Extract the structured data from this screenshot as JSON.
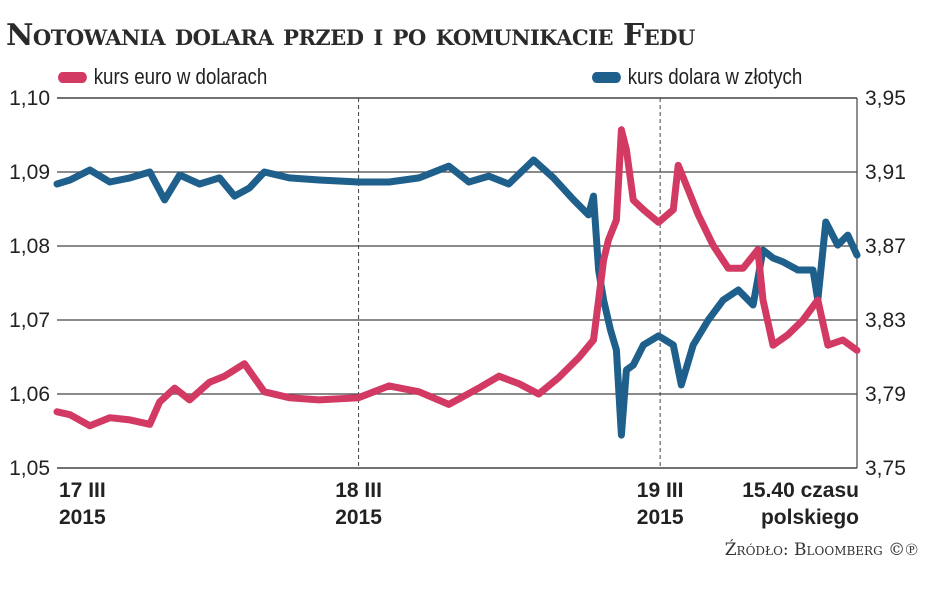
{
  "chart_data": {
    "type": "line",
    "title": "Notowania dolara przed i po komunikacie Fedu",
    "source": "Źródło: Bloomberg ©℗",
    "xlim": [
      "2015-03-17T00:00",
      "2015-03-19T15:40"
    ],
    "x_ticks": [
      {
        "x": "2015-03-17T00:00",
        "line1": "17 III",
        "line2": "2015"
      },
      {
        "x": "2015-03-18T00:00",
        "line1": "18 III",
        "line2": "2015"
      },
      {
        "x": "2015-03-19T00:00",
        "line1": "19 III",
        "line2": "2015"
      },
      {
        "x": "2015-03-19T15:40",
        "line1": "15.40 czasu",
        "line2": "polskiego"
      }
    ],
    "left_axis": {
      "ylim": [
        1.05,
        1.1
      ],
      "ticks": [
        "1,10",
        "1,09",
        "1,08",
        "1,07",
        "1,06",
        "1,05"
      ]
    },
    "right_axis": {
      "ylim": [
        3.75,
        3.95
      ],
      "ticks": [
        "3,95",
        "3,91",
        "3,87",
        "3,83",
        "3,79",
        "3,75"
      ]
    },
    "grid": true,
    "dashed_day_separators": true,
    "series": [
      {
        "name": "kurs euro w dolarach",
        "axis": "left",
        "color": "#d23a63",
        "points": [
          [
            "2015-03-17T00:00",
            1.0576
          ],
          [
            "2015-03-17T01:02",
            1.0572
          ],
          [
            "2015-03-17T02:37",
            1.0557
          ],
          [
            "2015-03-17T04:12",
            1.0568
          ],
          [
            "2015-03-17T05:48",
            1.0565
          ],
          [
            "2015-03-17T07:23",
            1.0559
          ],
          [
            "2015-03-17T08:10",
            1.0589
          ],
          [
            "2015-03-17T09:22",
            1.0608
          ],
          [
            "2015-03-17T10:33",
            1.0592
          ],
          [
            "2015-03-17T12:08",
            1.0616
          ],
          [
            "2015-03-17T13:20",
            1.0624
          ],
          [
            "2015-03-17T14:55",
            1.0641
          ],
          [
            "2015-03-17T16:30",
            1.0603
          ],
          [
            "2015-03-17T18:29",
            1.0595
          ],
          [
            "2015-03-17T20:52",
            1.0592
          ],
          [
            "2015-03-18T00:00",
            1.0595
          ],
          [
            "2015-03-18T02:26",
            1.0611
          ],
          [
            "2015-03-18T04:49",
            1.0603
          ],
          [
            "2015-03-18T07:11",
            1.0586
          ],
          [
            "2015-03-18T09:34",
            1.0608
          ],
          [
            "2015-03-18T11:10",
            1.0624
          ],
          [
            "2015-03-18T12:45",
            1.0614
          ],
          [
            "2015-03-18T14:20",
            1.06
          ],
          [
            "2015-03-18T15:55",
            1.0622
          ],
          [
            "2015-03-18T17:31",
            1.0649
          ],
          [
            "2015-03-18T18:42",
            1.0673
          ],
          [
            "2015-03-18T19:06",
            1.0727
          ],
          [
            "2015-03-18T19:30",
            1.0781
          ],
          [
            "2015-03-18T19:53",
            1.0808
          ],
          [
            "2015-03-18T20:31",
            1.0835
          ],
          [
            "2015-03-18T20:55",
            1.0957
          ],
          [
            "2015-03-18T21:19",
            1.093
          ],
          [
            "2015-03-18T21:52",
            1.0862
          ],
          [
            "2015-03-18T22:40",
            1.0849
          ],
          [
            "2015-03-18T23:52",
            1.0832
          ],
          [
            "2015-03-19T01:03",
            1.0849
          ],
          [
            "2015-03-19T01:26",
            1.0909
          ],
          [
            "2015-03-19T02:14",
            1.0876
          ],
          [
            "2015-03-19T03:02",
            1.0842
          ],
          [
            "2015-03-19T04:13",
            1.0801
          ],
          [
            "2015-03-19T05:25",
            1.077
          ],
          [
            "2015-03-19T06:36",
            1.077
          ],
          [
            "2015-03-19T07:47",
            1.0795
          ],
          [
            "2015-03-19T08:11",
            1.0727
          ],
          [
            "2015-03-19T08:59",
            1.0666
          ],
          [
            "2015-03-19T10:10",
            1.068
          ],
          [
            "2015-03-19T11:22",
            1.07
          ],
          [
            "2015-03-19T12:33",
            1.0727
          ],
          [
            "2015-03-19T13:21",
            1.0666
          ],
          [
            "2015-03-19T14:32",
            1.0673
          ],
          [
            "2015-03-19T15:40",
            1.0659
          ]
        ]
      },
      {
        "name": "kurs dolara w złotych",
        "axis": "right",
        "color": "#1e5f8c",
        "points": [
          [
            "2015-03-17T00:00",
            3.9035
          ],
          [
            "2015-03-17T01:02",
            3.9057
          ],
          [
            "2015-03-17T02:37",
            3.9111
          ],
          [
            "2015-03-17T04:12",
            3.9046
          ],
          [
            "2015-03-17T05:48",
            3.9068
          ],
          [
            "2015-03-17T07:23",
            3.91
          ],
          [
            "2015-03-17T08:34",
            3.8949
          ],
          [
            "2015-03-17T09:46",
            3.9084
          ],
          [
            "2015-03-17T11:21",
            3.9035
          ],
          [
            "2015-03-17T12:56",
            3.9068
          ],
          [
            "2015-03-17T14:08",
            3.897
          ],
          [
            "2015-03-17T15:19",
            3.9014
          ],
          [
            "2015-03-17T16:30",
            3.91
          ],
          [
            "2015-03-17T18:29",
            3.9068
          ],
          [
            "2015-03-17T20:52",
            3.9057
          ],
          [
            "2015-03-18T00:00",
            3.9046
          ],
          [
            "2015-03-18T02:26",
            3.9046
          ],
          [
            "2015-03-18T04:49",
            3.9068
          ],
          [
            "2015-03-18T07:11",
            3.9132
          ],
          [
            "2015-03-18T08:47",
            3.9046
          ],
          [
            "2015-03-18T10:22",
            3.9078
          ],
          [
            "2015-03-18T11:57",
            3.9035
          ],
          [
            "2015-03-18T13:56",
            3.9165
          ],
          [
            "2015-03-18T15:31",
            3.9068
          ],
          [
            "2015-03-18T17:07",
            3.8949
          ],
          [
            "2015-03-18T18:18",
            3.8868
          ],
          [
            "2015-03-18T18:42",
            3.897
          ],
          [
            "2015-03-18T19:06",
            3.857
          ],
          [
            "2015-03-18T19:30",
            3.8408
          ],
          [
            "2015-03-18T20:03",
            3.8246
          ],
          [
            "2015-03-18T20:31",
            3.8138
          ],
          [
            "2015-03-18T20:55",
            3.7678
          ],
          [
            "2015-03-18T21:19",
            3.803
          ],
          [
            "2015-03-18T21:52",
            3.8057
          ],
          [
            "2015-03-18T22:40",
            3.8165
          ],
          [
            "2015-03-18T23:52",
            3.8214
          ],
          [
            "2015-03-19T01:03",
            3.8165
          ],
          [
            "2015-03-19T01:41",
            3.7949
          ],
          [
            "2015-03-19T02:38",
            3.8165
          ],
          [
            "2015-03-19T03:50",
            3.83
          ],
          [
            "2015-03-19T05:01",
            3.8408
          ],
          [
            "2015-03-19T06:13",
            3.8462
          ],
          [
            "2015-03-19T07:24",
            3.8381
          ],
          [
            "2015-03-19T08:11",
            3.8678
          ],
          [
            "2015-03-19T08:59",
            3.8635
          ],
          [
            "2015-03-19T09:47",
            3.8614
          ],
          [
            "2015-03-19T10:58",
            3.857
          ],
          [
            "2015-03-19T12:10",
            3.857
          ],
          [
            "2015-03-19T12:33",
            3.8408
          ],
          [
            "2015-03-19T13:11",
            3.883
          ],
          [
            "2015-03-19T14:08",
            3.8705
          ],
          [
            "2015-03-19T14:56",
            3.8759
          ],
          [
            "2015-03-19T15:40",
            3.8651
          ]
        ]
      }
    ]
  }
}
